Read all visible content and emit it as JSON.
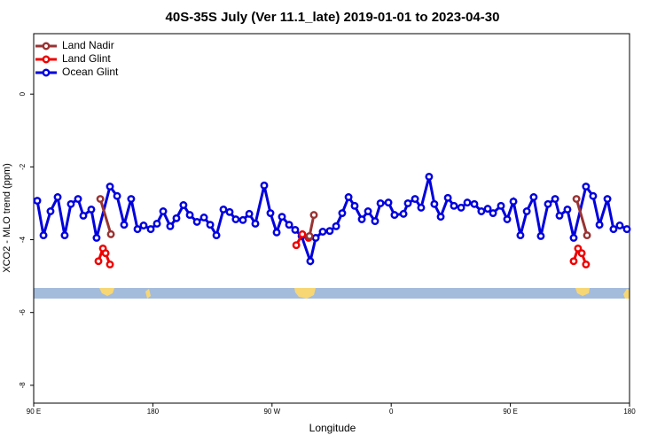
{
  "chart_data": {
    "type": "line",
    "title": "40S-35S July (Ver 11.1_late)   2019-01-01 to 2023-04-30",
    "x_label": "Longitude",
    "y_label": "XCO2 - MLO trend (ppm)",
    "xlim": [
      90,
      540
    ],
    "xticks": [
      {
        "value": 90,
        "label": "90 E"
      },
      180,
      {
        "value": 270,
        "label": "90 W"
      },
      {
        "value": 360,
        "label": "0"
      },
      {
        "value": 450,
        "label": "90 E"
      },
      {
        "value": 540,
        "label": "180"
      }
    ],
    "ylim": [
      -8.49,
      1.66
    ],
    "yticks": [
      0,
      -2,
      -4,
      -6,
      -8
    ],
    "legend": "top-left",
    "series": [
      {
        "name": "Land Nadir",
        "color": "#993333",
        "x": [
          140.3,
          148.3,
          null,
          298.3,
          301.6,
          null,
          499.9,
          507.9
        ],
        "values": [
          -2.88,
          -3.85,
          null,
          -3.9,
          -3.32,
          null,
          -2.88,
          -3.88
        ]
      },
      {
        "name": "Land Glint",
        "color": "#ee0000",
        "x": [
          138.9,
          142.3,
          144.3,
          147.6,
          null,
          288.3,
          292.9,
          297.6,
          null,
          497.8,
          501.1,
          503.9,
          507.1
        ],
        "values": [
          -4.59,
          -4.24,
          -4.37,
          -4.68,
          null,
          -4.15,
          -3.85,
          -3.95,
          null,
          -4.59,
          -4.24,
          -4.37,
          -4.68
        ]
      },
      {
        "name": "Ocean Glint",
        "color": "#0000dd",
        "x": [
          92.7,
          97.4,
          102.7,
          108.1,
          113.4,
          118.1,
          123.5,
          127.5,
          133.5,
          137.5,
          147.6,
          153.0,
          158.3,
          163.6,
          168.4,
          173.0,
          178.4,
          183.1,
          187.8,
          193.1,
          197.8,
          203.1,
          207.9,
          213.3,
          218.6,
          223.3,
          228.0,
          233.3,
          238.0,
          242.6,
          248.0,
          252.8,
          257.4,
          264.1,
          268.8,
          273.5,
          277.5,
          282.9,
          287.5,
          292.3,
          298.9,
          303.0,
          308.3,
          313.6,
          318.4,
          323.0,
          327.8,
          332.4,
          337.8,
          342.5,
          347.8,
          351.9,
          357.9,
          362.5,
          369.3,
          372.6,
          378.0,
          382.6,
          388.6,
          392.6,
          397.4,
          402.8,
          407.4,
          412.8,
          417.5,
          422.8,
          428.1,
          432.9,
          436.9,
          442.9,
          447.6,
          452.3,
          457.6,
          462.4,
          467.6,
          473.0,
          478.4,
          483.8,
          487.1,
          493.1,
          497.8,
          507.1,
          512.5,
          517.3,
          523.3,
          527.9,
          532.6,
          538.0
        ],
        "values": [
          -2.93,
          -3.88,
          -3.22,
          -2.83,
          -3.88,
          -3.02,
          -2.88,
          -3.34,
          -3.17,
          -3.95,
          -2.54,
          -2.8,
          -3.59,
          -2.88,
          -3.71,
          -3.61,
          -3.71,
          -3.56,
          -3.22,
          -3.63,
          -3.41,
          -3.05,
          -3.32,
          -3.51,
          -3.39,
          -3.59,
          -3.88,
          -3.17,
          -3.24,
          -3.44,
          -3.46,
          -3.29,
          -3.56,
          -2.51,
          -3.27,
          -3.8,
          -3.37,
          -3.59,
          -3.73,
          -3.9,
          -4.59,
          -3.95,
          -3.78,
          -3.76,
          -3.63,
          -3.27,
          -2.83,
          -3.07,
          -3.44,
          -3.22,
          -3.49,
          -3.0,
          -2.98,
          -3.32,
          -3.29,
          -3.0,
          -2.88,
          -3.12,
          -2.27,
          -3.02,
          -3.37,
          -2.85,
          -3.07,
          -3.12,
          -2.98,
          -3.02,
          -3.22,
          -3.15,
          -3.27,
          -3.07,
          -3.44,
          -2.95,
          -3.88,
          -3.22,
          -2.83,
          -3.9,
          -3.02,
          -2.88,
          -3.34,
          -3.17,
          -3.95,
          -2.54,
          -2.8,
          -3.59,
          -2.88,
          -3.71,
          -3.61,
          -3.71
        ]
      }
    ]
  }
}
